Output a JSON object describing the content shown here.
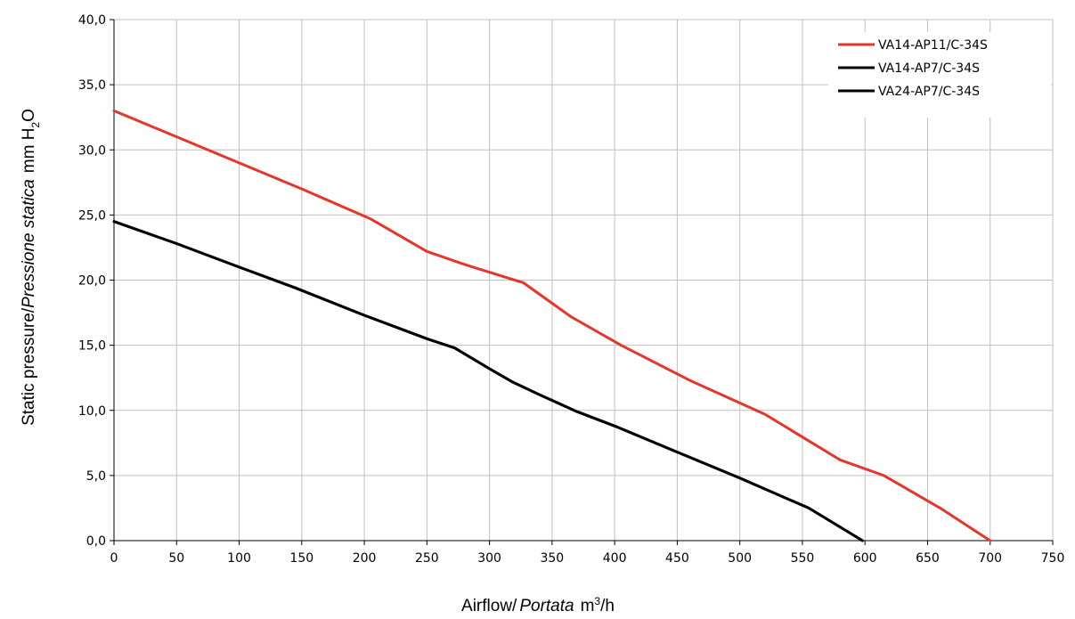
{
  "chart_data": {
    "type": "line",
    "xlabel": {
      "main": "Airflow",
      "sep": "/",
      "italic": "Portata",
      "unit": "m",
      "unit_sup": "3",
      "unit_tail": "/h"
    },
    "ylabel": {
      "main": "Static pressure",
      "sep": "/",
      "italic": "Pressione statica",
      "unit": "mm H",
      "unit_sub": "2",
      "unit_tail": "O"
    },
    "xlim": [
      0,
      750
    ],
    "ylim": [
      0,
      40
    ],
    "x_ticks": [
      0,
      50,
      100,
      150,
      200,
      250,
      300,
      350,
      400,
      450,
      500,
      550,
      600,
      650,
      700,
      750
    ],
    "x_tick_labels": [
      "0",
      "50",
      "100",
      "150",
      "200",
      "250",
      "300",
      "350",
      "400",
      "450",
      "500",
      "550",
      "600",
      "650",
      "700",
      "750"
    ],
    "y_ticks": [
      0,
      5,
      10,
      15,
      20,
      25,
      30,
      35,
      40
    ],
    "y_tick_labels": [
      "0,0",
      "5,0",
      "10,0",
      "15,0",
      "20,0",
      "25,0",
      "30,0",
      "35,0",
      "40,0"
    ],
    "grid": true,
    "legend_position": "top-right",
    "series": [
      {
        "name": "VA14-AP11/C-34S",
        "color": "#e2372a",
        "x": [
          0,
          50,
          100,
          150,
          205,
          250,
          280,
          327,
          365,
          405,
          460,
          520,
          580,
          615,
          660,
          700
        ],
        "y": [
          33.0,
          31.0,
          29.0,
          27.0,
          24.7,
          22.2,
          21.2,
          19.8,
          17.2,
          15.0,
          12.3,
          9.7,
          6.2,
          5.0,
          2.5,
          0.0
        ]
      },
      {
        "name": "VA14-AP7/C-34S",
        "color": "#000000",
        "x": [
          0,
          50,
          100,
          145,
          200,
          250,
          272,
          300,
          318,
          340,
          370,
          400,
          450,
          500,
          555,
          598
        ],
        "y": [
          24.5,
          22.8,
          21.0,
          19.4,
          17.3,
          15.5,
          14.8,
          13.2,
          12.2,
          11.2,
          9.9,
          8.8,
          6.8,
          4.8,
          2.5,
          0.0
        ]
      },
      {
        "name": "VA24-AP7/C-34S",
        "color": "#000000",
        "x": [
          0,
          50,
          100,
          145,
          200,
          250,
          272,
          300,
          318,
          340,
          370,
          400,
          450,
          500,
          555,
          598
        ],
        "y": [
          24.5,
          22.8,
          21.0,
          19.4,
          17.3,
          15.5,
          14.8,
          13.2,
          12.2,
          11.2,
          9.9,
          8.8,
          6.8,
          4.8,
          2.5,
          0.0
        ]
      }
    ]
  }
}
